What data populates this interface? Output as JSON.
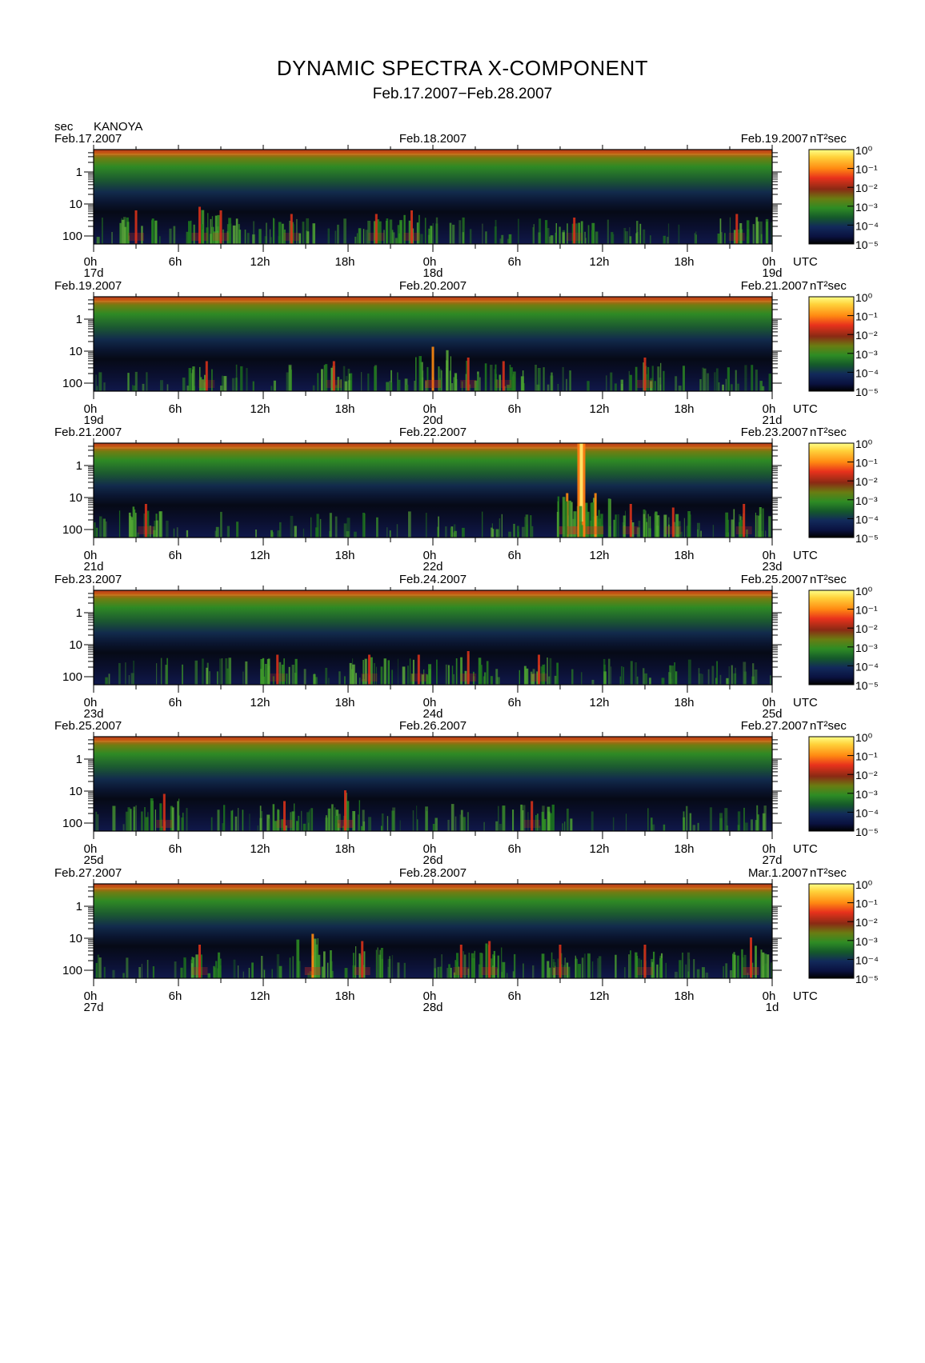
{
  "title": "DYNAMIC SPECTRA X-COMPONENT",
  "subtitle": "Feb.17.2007−Feb.28.2007",
  "y_unit": "sec",
  "station": "KANOYA",
  "colorbar_unit": "nT²sec",
  "time_unit": "UTC",
  "chart_data": {
    "type": "heatmap",
    "title": "DYNAMIC SPECTRA X-COMPONENT",
    "subtitle": "Feb.17.2007−Feb.28.2007",
    "ylabel": "sec",
    "station": "KANOYA",
    "colorbar": {
      "label": "nT²sec",
      "scale": "log",
      "ticks": [
        "10⁰",
        "10⁻¹",
        "10⁻²",
        "10⁻³",
        "10⁻⁴",
        "10⁻⁵"
      ],
      "range": [
        1e-05,
        1
      ]
    },
    "y_ticks": [
      "1",
      "10",
      "100"
    ],
    "y_scale": "log",
    "x_ticks": [
      "0h",
      "6h",
      "12h",
      "18h",
      "0h",
      "6h",
      "12h",
      "18h",
      "0h"
    ],
    "x_unit": "UTC",
    "panels": [
      {
        "start_label": "Feb.17.2007",
        "mid_label": "Feb.18.2007",
        "end_label": "Feb.19.2007",
        "day_labels": [
          "17d",
          "18d",
          "19d"
        ],
        "events": [
          {
            "hour": 3.0,
            "intensity": 0.6
          },
          {
            "hour": 7.5,
            "intensity": 0.7
          },
          {
            "hour": 9.0,
            "intensity": 0.6
          },
          {
            "hour": 14.0,
            "intensity": 0.5
          },
          {
            "hour": 20.0,
            "intensity": 0.5
          },
          {
            "hour": 22.5,
            "intensity": 0.6
          },
          {
            "hour": 34.0,
            "intensity": 0.4
          },
          {
            "hour": 45.5,
            "intensity": 0.5
          }
        ]
      },
      {
        "start_label": "Feb.19.2007",
        "mid_label": "Feb.20.2007",
        "end_label": "Feb.21.2007",
        "day_labels": [
          "19d",
          "20d",
          "21d"
        ],
        "events": [
          {
            "hour": 8.0,
            "intensity": 0.5
          },
          {
            "hour": 17.0,
            "intensity": 0.5
          },
          {
            "hour": 24.0,
            "intensity": 0.9
          },
          {
            "hour": 26.5,
            "intensity": 0.6
          },
          {
            "hour": 29.0,
            "intensity": 0.5
          },
          {
            "hour": 39.0,
            "intensity": 0.6
          }
        ]
      },
      {
        "start_label": "Feb.21.2007",
        "mid_label": "Feb.22.2007",
        "end_label": "Feb.23.2007",
        "day_labels": [
          "21d",
          "22d",
          "23d"
        ],
        "events": [
          {
            "hour": 3.7,
            "intensity": 0.6
          },
          {
            "hour": 33.5,
            "intensity": 0.9
          },
          {
            "hour": 34.5,
            "intensity": 1.0
          },
          {
            "hour": 35.5,
            "intensity": 0.9
          },
          {
            "hour": 38.0,
            "intensity": 0.6
          },
          {
            "hour": 41.0,
            "intensity": 0.5
          },
          {
            "hour": 46.0,
            "intensity": 0.6
          }
        ]
      },
      {
        "start_label": "Feb.23.2007",
        "mid_label": "Feb.24.2007",
        "end_label": "Feb.25.2007",
        "day_labels": [
          "23d",
          "24d",
          "25d"
        ],
        "events": [
          {
            "hour": 13.0,
            "intensity": 0.5
          },
          {
            "hour": 19.5,
            "intensity": 0.5
          },
          {
            "hour": 23.0,
            "intensity": 0.5
          },
          {
            "hour": 26.5,
            "intensity": 0.6
          },
          {
            "hour": 31.5,
            "intensity": 0.5
          }
        ]
      },
      {
        "start_label": "Feb.25.2007",
        "mid_label": "Feb.26.2007",
        "end_label": "Feb.27.2007",
        "day_labels": [
          "25d",
          "26d",
          "27d"
        ],
        "events": [
          {
            "hour": 5.0,
            "intensity": 0.7
          },
          {
            "hour": 13.5,
            "intensity": 0.5
          },
          {
            "hour": 17.8,
            "intensity": 0.8
          },
          {
            "hour": 31.0,
            "intensity": 0.5
          }
        ]
      },
      {
        "start_label": "Feb.27.2007",
        "mid_label": "Feb.28.2007",
        "end_label": "Mar.1.2007",
        "day_labels": [
          "27d",
          "28d",
          "1d"
        ],
        "events": [
          {
            "hour": 7.5,
            "intensity": 0.6
          },
          {
            "hour": 15.5,
            "intensity": 0.9
          },
          {
            "hour": 19.0,
            "intensity": 0.7
          },
          {
            "hour": 26.0,
            "intensity": 0.6
          },
          {
            "hour": 28.0,
            "intensity": 0.7
          },
          {
            "hour": 33.0,
            "intensity": 0.6
          },
          {
            "hour": 39.0,
            "intensity": 0.6
          },
          {
            "hour": 46.5,
            "intensity": 0.8
          }
        ]
      }
    ]
  }
}
